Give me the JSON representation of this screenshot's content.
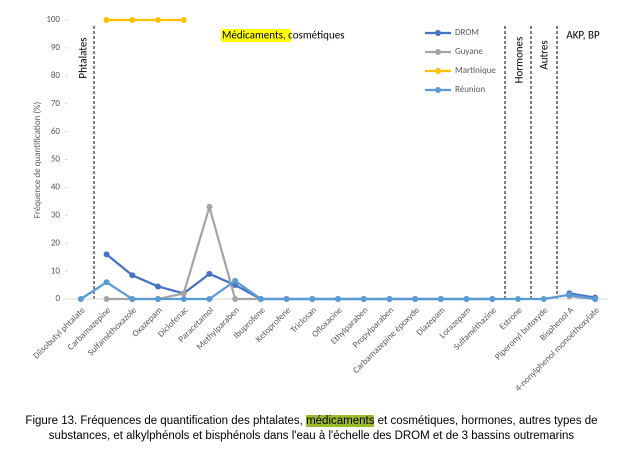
{
  "chart_data": {
    "type": "line",
    "y_label": "Fréquence de quantification (%)",
    "annotations": [
      "Phtalates",
      "Médicaments, cosmétiques",
      "Hormones",
      "Autres",
      "AKP, BP"
    ],
    "categories": [
      "Diisobutyl phtalate",
      "Carbamazepine",
      "Sulfaméthoxazole",
      "Oxazepam",
      "Diclofenac",
      "Paracetamol",
      "Methylparaben",
      "Ibuprofene",
      "Ketoprofene",
      "Triclosan",
      "Ofloxacine",
      "Ethylparaben",
      "Propylparaben",
      "Carbamazepine époxyde",
      "Diazepam",
      "Lorazepam",
      "Sulfaméthazine",
      "Estrone",
      "Piperonyl butoxyde",
      "Bisphenol A",
      "4-nonylphenol monoéthoxylate"
    ],
    "series": [
      {
        "name": "DROM",
        "color": "#4472c4",
        "values": [
          null,
          16,
          8.5,
          4.5,
          2,
          9,
          5,
          0,
          0,
          0,
          0,
          0,
          0,
          0,
          0,
          0,
          0,
          null,
          null,
          2,
          0.5
        ]
      },
      {
        "name": "Guyane",
        "color": "#a5a5a5",
        "values": [
          null,
          0,
          0,
          0,
          2,
          33,
          0,
          0,
          0,
          0,
          0,
          0,
          0,
          0,
          0,
          0,
          0,
          null,
          null,
          1,
          0
        ]
      },
      {
        "name": "Martinique",
        "color": "#ffc000",
        "values": [
          null,
          100,
          100,
          100,
          100,
          null,
          null,
          null,
          null,
          null,
          null,
          null,
          null,
          null,
          null,
          null,
          null,
          null,
          null,
          null,
          null
        ]
      },
      {
        "name": "Réunion",
        "color": "#5b9bd5",
        "values": [
          0,
          6,
          0,
          0,
          0,
          0,
          6.5,
          0,
          0,
          0,
          0,
          0,
          0,
          0,
          0,
          0,
          0,
          0,
          0,
          1.5,
          0
        ]
      }
    ],
    "ylim": [
      0,
      100
    ],
    "yticks": [
      0,
      10,
      20,
      30,
      40,
      50,
      60,
      70,
      80,
      90,
      100
    ],
    "legend": "upper right"
  },
  "caption": [
    "Figure 13. Fréquences de quantification des phtalates, ",
    "médicaments",
    " et cosmétiques, hormones, autres types de substances, et alkylphénols et bisphénols dans l'eau à l'échelle des DROM et de 3 bassins outremarins"
  ]
}
